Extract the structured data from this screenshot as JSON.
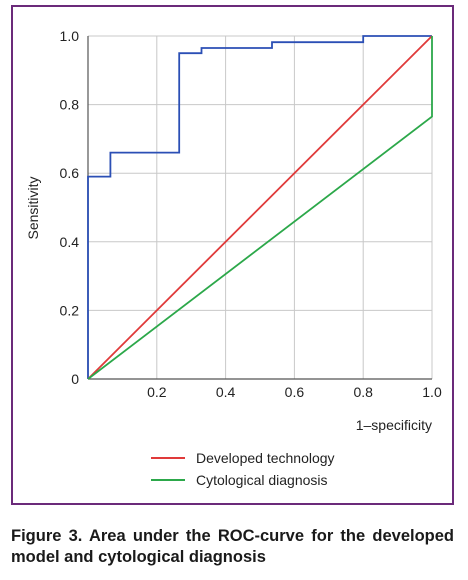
{
  "caption": "Figure 3. Area under the ROC-curve for the developed model and cytological diagnosis",
  "colors": {
    "frame": "#6b2a7a",
    "developed_model": "#2b4fb5",
    "developed_technology": "#e03a3a",
    "cytological_diagnosis": "#2ca84a",
    "grid": "#c8c8c8"
  },
  "chart_data": {
    "type": "line",
    "title": "",
    "xlabel": "1–specificity",
    "ylabel": "Sensitivity",
    "xlim": [
      0,
      1
    ],
    "ylim": [
      0,
      1
    ],
    "xticks": [
      0.2,
      0.4,
      0.6,
      0.8,
      1.0
    ],
    "xtick_labels": [
      "0.2",
      "0.4",
      "0.6",
      "0.8",
      "1.0"
    ],
    "yticks": [
      0,
      0.2,
      0.4,
      0.6,
      0.8,
      1.0
    ],
    "ytick_labels": [
      "0",
      "0.2",
      "0.4",
      "0.6",
      "0.8",
      "1.0"
    ],
    "grid": true,
    "legend_position": "bottom",
    "series": [
      {
        "key": "developed_model",
        "in_legend": false,
        "x": [
          0,
          0,
          0.065,
          0.065,
          0.265,
          0.265,
          0.33,
          0.33,
          0.535,
          0.535,
          0.8,
          0.8,
          1.0
        ],
        "y": [
          0,
          0.59,
          0.59,
          0.66,
          0.66,
          0.95,
          0.95,
          0.965,
          0.965,
          0.982,
          0.982,
          1.0,
          1.0
        ]
      },
      {
        "key": "developed_technology",
        "name": "Developed technology",
        "in_legend": true,
        "x": [
          0,
          1.0
        ],
        "y": [
          0,
          1.0
        ]
      },
      {
        "key": "cytological_diagnosis",
        "name": "Cytological diagnosis",
        "in_legend": true,
        "x": [
          0,
          1.0,
          1.0
        ],
        "y": [
          0,
          0.765,
          1.0
        ]
      }
    ]
  }
}
